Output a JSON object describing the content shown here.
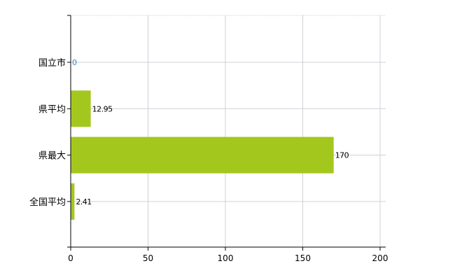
{
  "chart_data": {
    "type": "bar",
    "orientation": "horizontal",
    "categories": [
      "国立市",
      "県平均",
      "県最大",
      "全国平均"
    ],
    "values": [
      0,
      12.95,
      170,
      2.41
    ],
    "value_labels": [
      "0",
      "12.95",
      "170",
      "2.41"
    ],
    "xlim": [
      0,
      200
    ],
    "xticks": [
      "0",
      "50",
      "100",
      "150",
      "200"
    ],
    "title": "",
    "xlabel": "",
    "ylabel": "",
    "grid": true,
    "colors": {
      "bar": "#a4c71e",
      "zero_label": "#1e90d6",
      "grid": "#d0d0d8"
    }
  }
}
